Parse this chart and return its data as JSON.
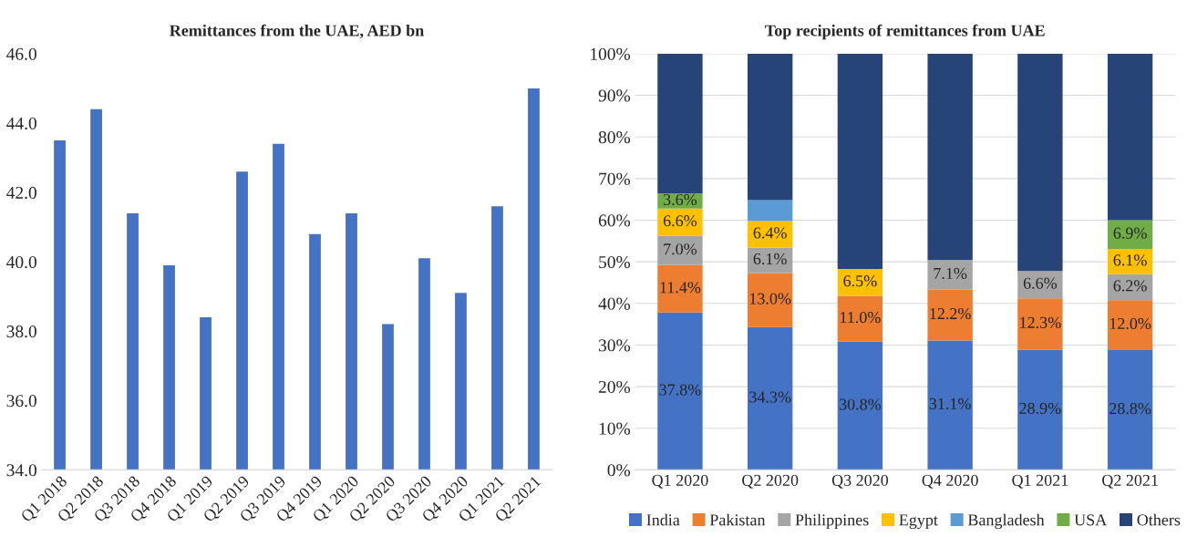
{
  "chart_data": [
    {
      "type": "bar",
      "title": "Remittances from the UAE, AED bn",
      "categories": [
        "Q1 2018",
        "Q2 2018",
        "Q3 2018",
        "Q4 2018",
        "Q1 2019",
        "Q2 2019",
        "Q3 2019",
        "Q4 2019",
        "Q1 2020",
        "Q2 2020",
        "Q3 2020",
        "Q4 2020",
        "Q1 2021",
        "Q2 2021"
      ],
      "values": [
        43.5,
        44.4,
        41.4,
        39.9,
        38.4,
        42.6,
        43.4,
        40.8,
        41.4,
        38.2,
        40.1,
        39.1,
        41.6,
        45.0
      ],
      "color": "#4472c4",
      "ylim": [
        34,
        46
      ],
      "yticks": [
        {
          "value": 34,
          "label": "34.0"
        },
        {
          "value": 36,
          "label": "36.0"
        },
        {
          "value": 38,
          "label": "38.0"
        },
        {
          "value": 40,
          "label": "40.0"
        },
        {
          "value": 42,
          "label": "42.0"
        },
        {
          "value": 44,
          "label": "44.0"
        },
        {
          "value": 46,
          "label": "46.0"
        }
      ],
      "grid": false,
      "legend": false
    },
    {
      "type": "bar",
      "title": "Top recipients of remittances from UAE",
      "stacked": true,
      "categories": [
        "Q1 2020",
        "Q2 2020",
        "Q3 2020",
        "Q4 2020",
        "Q1 2021",
        "Q2 2021"
      ],
      "series": [
        {
          "name": "India",
          "color": "#4472c4",
          "values": [
            37.8,
            34.3,
            30.8,
            31.1,
            28.9,
            28.8
          ],
          "value_labels": [
            "37.8%",
            "34.3%",
            "30.8%",
            "31.1%",
            "28.9%",
            "28.8%"
          ]
        },
        {
          "name": "Pakistan",
          "color": "#ed7d31",
          "values": [
            11.4,
            13.0,
            11.0,
            12.2,
            12.3,
            12.0
          ],
          "value_labels": [
            "11.4%",
            "13.0%",
            "11.0%",
            "12.2%",
            "12.3%",
            "12.0%"
          ]
        },
        {
          "name": "Philippines",
          "color": "#a5a5a5",
          "values": [
            7.0,
            6.1,
            null,
            7.1,
            6.6,
            6.2
          ],
          "value_labels": [
            "7.0%",
            "6.1%",
            null,
            "7.1%",
            "6.6%",
            "6.2%"
          ]
        },
        {
          "name": "Egypt",
          "color": "#ffc000",
          "values": [
            6.6,
            6.4,
            6.5,
            null,
            null,
            6.1
          ],
          "value_labels": [
            "6.6%",
            "6.4%",
            "6.5%",
            null,
            null,
            "6.1%"
          ]
        },
        {
          "name": "Bangladesh",
          "color": "#5b9bd5",
          "values": [
            null,
            5.0,
            null,
            null,
            null,
            null
          ],
          "value_labels": [
            null,
            null,
            null,
            null,
            null,
            null
          ]
        },
        {
          "name": "USA",
          "color": "#70ad47",
          "values": [
            3.6,
            null,
            null,
            null,
            null,
            6.9
          ],
          "value_labels": [
            "3.6%",
            null,
            null,
            null,
            null,
            "6.9%"
          ]
        },
        {
          "name": "Others",
          "color": "#264478",
          "values": [
            33.6,
            35.2,
            51.7,
            49.6,
            52.2,
            40.0
          ],
          "value_labels": [
            null,
            null,
            null,
            null,
            null,
            null
          ]
        }
      ],
      "ylim": [
        0,
        100
      ],
      "yticks": [
        {
          "value": 0,
          "label": "0%"
        },
        {
          "value": 10,
          "label": "10%"
        },
        {
          "value": 20,
          "label": "20%"
        },
        {
          "value": 30,
          "label": "30%"
        },
        {
          "value": 40,
          "label": "40%"
        },
        {
          "value": 50,
          "label": "50%"
        },
        {
          "value": 60,
          "label": "60%"
        },
        {
          "value": 70,
          "label": "70%"
        },
        {
          "value": 80,
          "label": "80%"
        },
        {
          "value": 90,
          "label": "90%"
        },
        {
          "value": 100,
          "label": "100%"
        }
      ],
      "grid": "y",
      "legend": "bottom"
    }
  ]
}
